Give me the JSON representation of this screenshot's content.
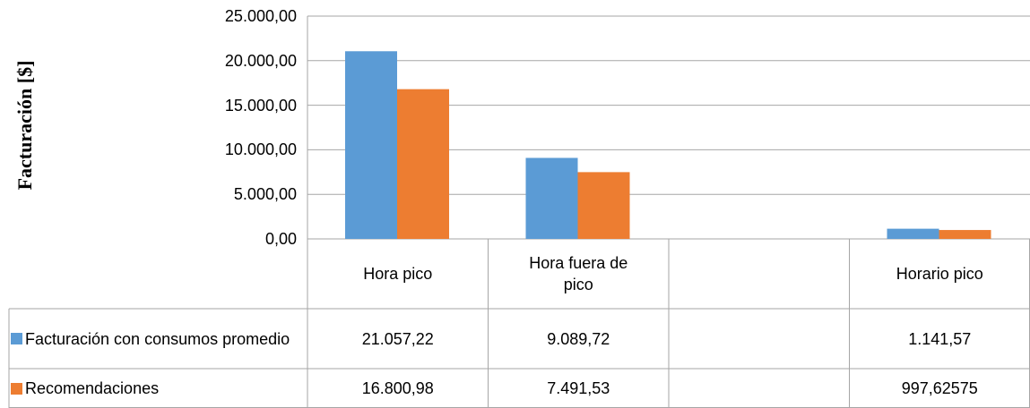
{
  "chart_data": {
    "type": "bar",
    "y_label": "Facturación [$]",
    "categories": [
      "Hora pico",
      "Hora fuera de pico",
      null,
      "Horario pico"
    ],
    "series": [
      {
        "name": "Facturación con consumos promedio",
        "color": "#5b9bd5",
        "values": [
          21057.22,
          9089.72,
          null,
          1141.57
        ],
        "value_labels": [
          "21.057,22",
          "9.089,72",
          null,
          "1.141,57"
        ]
      },
      {
        "name": "Recomendaciones",
        "color": "#ed7d31",
        "values": [
          16800.98,
          7491.53,
          null,
          997.62575
        ],
        "value_labels": [
          "16.800,98",
          "7.491,53",
          null,
          "997,62575"
        ]
      }
    ],
    "ylim": [
      0,
      25000
    ],
    "yticks": [
      {
        "value": 0,
        "label": "0,00"
      },
      {
        "value": 5000,
        "label": "5.000,00"
      },
      {
        "value": 10000,
        "label": "10.000,00"
      },
      {
        "value": 15000,
        "label": "15.000,00"
      },
      {
        "value": 20000,
        "label": "20.000,00"
      },
      {
        "value": 25000,
        "label": "25.000,00"
      }
    ],
    "grid": true
  }
}
